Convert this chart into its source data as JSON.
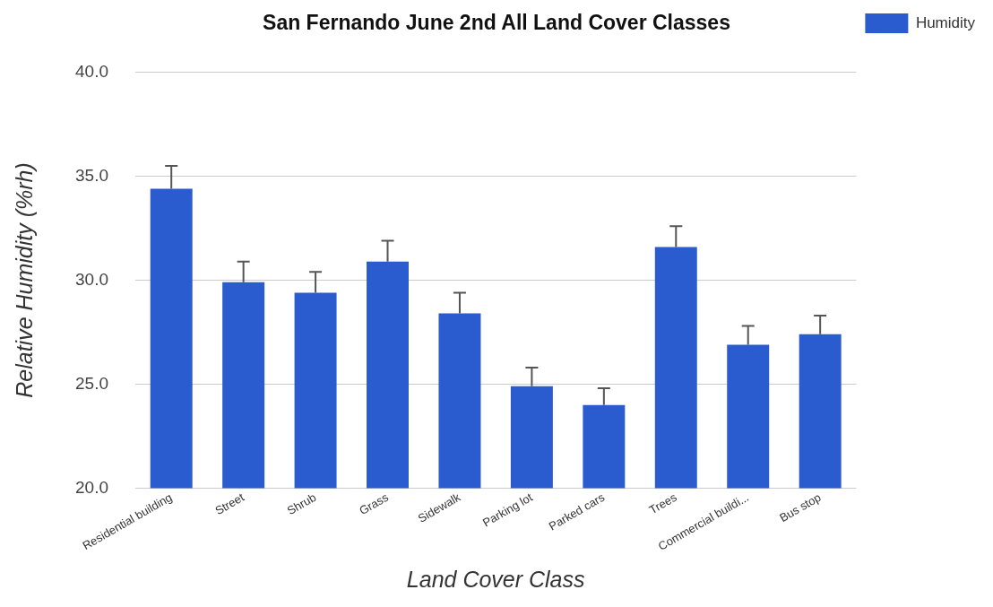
{
  "chart_data": {
    "type": "bar",
    "title": "San Fernando June 2nd All Land Cover Classes",
    "xlabel": "Land Cover Class",
    "ylabel": "Relative Humidity (%rh)",
    "categories": [
      "Residential building",
      "Street",
      "Shrub",
      "Grass",
      "Sidewalk",
      "Parking lot",
      "Parked cars",
      "Trees",
      "Commercial buildi...",
      "Bus stop"
    ],
    "series": [
      {
        "name": "Humidity",
        "color": "#2b5ccf",
        "values": [
          34.4,
          29.9,
          29.4,
          30.9,
          28.4,
          24.9,
          24.0,
          31.6,
          26.9,
          27.4
        ],
        "errors": [
          [
            34.4,
            35.5
          ],
          [
            29.9,
            30.9
          ],
          [
            29.4,
            30.4
          ],
          [
            30.9,
            31.9
          ],
          [
            28.4,
            29.4
          ],
          [
            24.9,
            25.8
          ],
          [
            24.0,
            24.8
          ],
          [
            31.6,
            32.6
          ],
          [
            26.9,
            27.8
          ],
          [
            27.4,
            28.3
          ]
        ]
      }
    ],
    "ylim": [
      20,
      40
    ],
    "yticks": [
      {
        "value": 20,
        "label": "20.0"
      },
      {
        "value": 25,
        "label": "25.0"
      },
      {
        "value": 30,
        "label": "30.0"
      },
      {
        "value": 35,
        "label": "35.0"
      },
      {
        "value": 40,
        "label": "40.0"
      }
    ],
    "grid": "y",
    "legend": "top right"
  }
}
